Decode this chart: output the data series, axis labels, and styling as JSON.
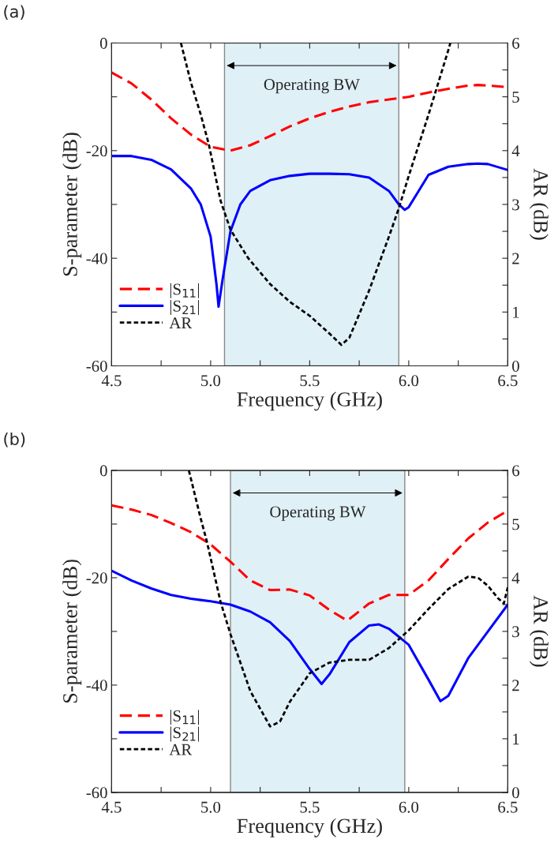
{
  "chart_data": [
    {
      "type": "line",
      "title": "(a)",
      "xlabel": "Frequency (GHz)",
      "ylabel": "S-parameter (dB)",
      "y2label": "AR (dB)",
      "xlim": [
        4.5,
        6.5
      ],
      "xticks": [
        4.5,
        {
          "value": 4.75,
          "label": null
        },
        "5.0",
        {
          "value": 5.25,
          "label": null
        },
        5.5,
        {
          "value": 5.75,
          "label": null
        },
        {
          "value": 6.0,
          "label": "6.0"
        },
        {
          "value": 6.25,
          "label": null
        },
        6.5
      ],
      "ylim": [
        -60,
        0
      ],
      "yticks": [
        -60,
        {
          "value": -50,
          "label": null
        },
        -40,
        {
          "value": -30,
          "label": null
        },
        -20,
        {
          "value": -10,
          "label": null
        },
        0
      ],
      "y2lim": [
        0,
        6
      ],
      "y2ticks": [
        0,
        {
          "value": 0.5,
          "label": null
        },
        1,
        {
          "value": 1.5,
          "label": null
        },
        2,
        {
          "value": 2.5,
          "label": null
        },
        3,
        {
          "value": 3.5,
          "label": null
        },
        4,
        {
          "value": 4.5,
          "label": null
        },
        5,
        {
          "value": 5.5,
          "label": null
        },
        6
      ],
      "grid": false,
      "legend": "bottom left",
      "marker": "none",
      "bands": [
        {
          "axis": "x",
          "from": 5.07,
          "to": 5.95,
          "label": "Operating BW",
          "color": "#e0f0f7"
        }
      ],
      "series": [
        {
          "name": "|S$_{11}$|",
          "color": "#ff0000",
          "line_style": "dashed",
          "x": [
            4.5,
            4.6,
            4.7,
            4.8,
            4.9,
            5.0,
            5.1,
            5.2,
            5.3,
            5.4,
            5.5,
            5.6,
            5.7,
            5.8,
            5.9,
            6.0,
            6.1,
            6.2,
            6.3,
            6.35,
            6.4,
            6.5
          ],
          "values": [
            -5.5,
            -7.5,
            -10.5,
            -14,
            -17,
            -19.3,
            -20,
            -19,
            -17.3,
            -15.5,
            -14,
            -12.8,
            -11.8,
            -11,
            -10.5,
            -10,
            -9.2,
            -8.5,
            -7.9,
            -7.8,
            -7.9,
            -8.2
          ]
        },
        {
          "name": "|S$_{21}$|",
          "color": "#0000ff",
          "line_style": "solid",
          "x": [
            4.5,
            4.6,
            4.7,
            4.8,
            4.9,
            4.95,
            5.0,
            5.03,
            5.04,
            5.06,
            5.1,
            5.15,
            5.2,
            5.3,
            5.4,
            5.5,
            5.6,
            5.7,
            5.8,
            5.9,
            5.95,
            5.98,
            6.0,
            6.05,
            6.1,
            6.2,
            6.3,
            6.35,
            6.4,
            6.5
          ],
          "values": [
            -21,
            -21,
            -21.7,
            -23.5,
            -27,
            -30,
            -36,
            -45,
            -49,
            -44,
            -35,
            -30,
            -27.5,
            -25.5,
            -24.7,
            -24.3,
            -24.3,
            -24.4,
            -25,
            -27.5,
            -30,
            -31,
            -30.5,
            -27.5,
            -24.5,
            -23,
            -22.5,
            -22.4,
            -22.5,
            -23.6
          ]
        },
        {
          "name": "AR",
          "color": "#000000",
          "line_style": "dotted",
          "axis": "y2",
          "x": [
            4.85,
            4.9,
            4.95,
            4.99,
            5.05,
            5.1,
            5.19,
            5.3,
            5.4,
            5.5,
            5.6,
            5.66,
            5.7,
            5.8,
            5.9,
            5.95,
            6.0,
            6.1,
            6.2,
            6.21
          ],
          "values": [
            6,
            5.27,
            4.67,
            4.13,
            3.07,
            2.53,
            2.0,
            1.52,
            1.19,
            0.93,
            0.6,
            0.39,
            0.52,
            1.4,
            2.4,
            2.93,
            3.53,
            4.67,
            5.87,
            6
          ]
        }
      ]
    },
    {
      "type": "line",
      "title": "(b)",
      "xlabel": "Frequency (GHz)",
      "ylabel": "S-parameter (dB)",
      "y2label": "AR (dB)",
      "xlim": [
        4.5,
        6.5
      ],
      "xticks": [
        4.5,
        {
          "value": 4.75,
          "label": null
        },
        "5.0",
        {
          "value": 5.25,
          "label": null
        },
        5.5,
        {
          "value": 5.75,
          "label": null
        },
        {
          "value": 6.0,
          "label": "6.0"
        },
        {
          "value": 6.25,
          "label": null
        },
        6.5
      ],
      "ylim": [
        -60,
        0
      ],
      "yticks": [
        -60,
        {
          "value": -50,
          "label": null
        },
        -40,
        {
          "value": -30,
          "label": null
        },
        -20,
        {
          "value": -10,
          "label": null
        },
        0
      ],
      "y2lim": [
        0,
        6
      ],
      "y2ticks": [
        0,
        {
          "value": 0.5,
          "label": null
        },
        1,
        {
          "value": 1.5,
          "label": null
        },
        2,
        {
          "value": 2.5,
          "label": null
        },
        3,
        {
          "value": 3.5,
          "label": null
        },
        4,
        {
          "value": 4.5,
          "label": null
        },
        5,
        {
          "value": 5.5,
          "label": null
        },
        6
      ],
      "grid": false,
      "legend": "bottom left",
      "marker": "none",
      "bands": [
        {
          "axis": "x",
          "from": 5.1,
          "to": 5.98,
          "label": "Operating BW",
          "color": "#e0f0f7"
        }
      ],
      "series": [
        {
          "name": "|S$_{11}$|",
          "color": "#ff0000",
          "line_style": "dashed",
          "x": [
            4.5,
            4.6,
            4.7,
            4.8,
            4.9,
            5.0,
            5.1,
            5.2,
            5.3,
            5.4,
            5.5,
            5.6,
            5.69,
            5.8,
            5.9,
            6.0,
            6.1,
            6.2,
            6.3,
            6.4,
            6.5
          ],
          "values": [
            -6.5,
            -7.3,
            -8.3,
            -9.8,
            -11.5,
            -13.8,
            -17,
            -20.5,
            -22.3,
            -22.2,
            -23.3,
            -26,
            -28,
            -24.8,
            -23.2,
            -23.2,
            -20.5,
            -16.5,
            -12.7,
            -9.7,
            -7.5
          ]
        },
        {
          "name": "|S$_{21}$|",
          "color": "#0000ff",
          "line_style": "solid",
          "x": [
            4.5,
            4.6,
            4.7,
            4.8,
            4.9,
            5.0,
            5.1,
            5.2,
            5.3,
            5.4,
            5.5,
            5.56,
            5.6,
            5.7,
            5.8,
            5.85,
            5.9,
            6.0,
            6.1,
            6.16,
            6.2,
            6.3,
            6.4,
            6.5
          ],
          "values": [
            -18.7,
            -20.5,
            -22,
            -23.2,
            -23.9,
            -24.4,
            -25,
            -26.3,
            -28.3,
            -31.8,
            -37,
            -39.8,
            -38,
            -32,
            -28.9,
            -28.7,
            -29.5,
            -32.5,
            -39,
            -43,
            -42,
            -35,
            -30,
            -25
          ]
        },
        {
          "name": "AR",
          "color": "#000000",
          "line_style": "dotted",
          "axis": "y2",
          "x": [
            4.89,
            4.95,
            4.98,
            5.05,
            5.1,
            5.2,
            5.3,
            5.35,
            5.4,
            5.5,
            5.6,
            5.7,
            5.8,
            5.9,
            6.0,
            6.1,
            6.2,
            6.3,
            6.35,
            6.4,
            6.45,
            6.48,
            6.5
          ],
          "values": [
            6,
            5.1,
            4.69,
            3.55,
            2.95,
            1.89,
            1.23,
            1.32,
            1.69,
            2.22,
            2.42,
            2.47,
            2.47,
            2.69,
            3.02,
            3.42,
            3.79,
            4.02,
            4.0,
            3.85,
            3.62,
            3.52,
            3.82
          ]
        }
      ]
    }
  ]
}
